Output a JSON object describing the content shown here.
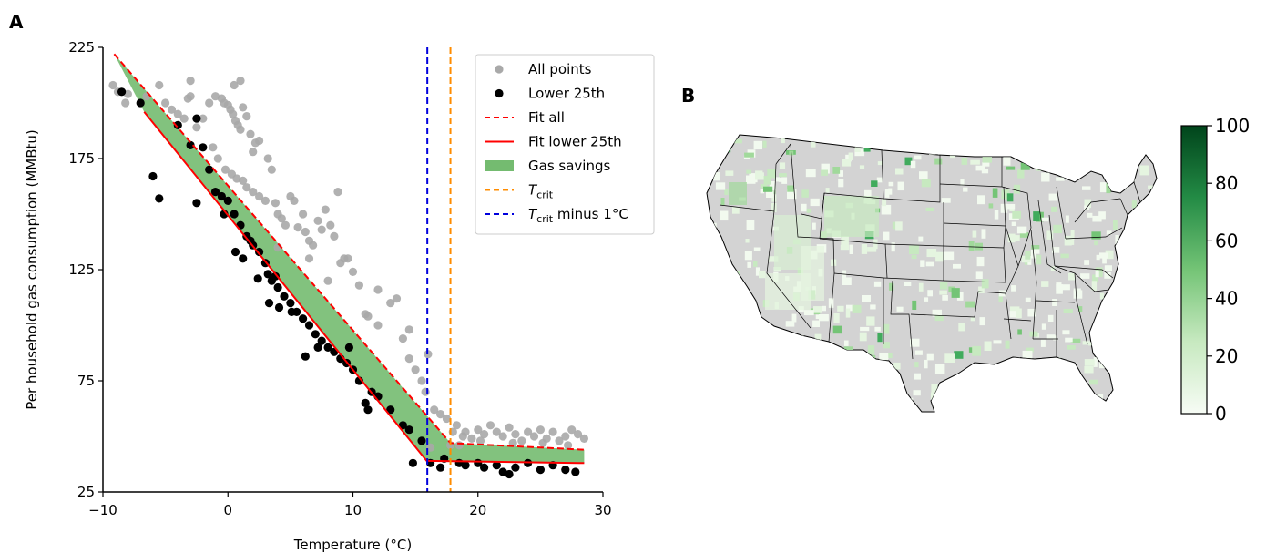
{
  "panel_a_label": "A",
  "panel_b_label": "B",
  "colors": {
    "all_points": "#a9a9a9",
    "lower_points": "#000000",
    "fit": "#ff0000",
    "savings": "#74bb70",
    "tcrit": "#ff8c00",
    "tcrit_minus": "#0000dd"
  },
  "chart_data": [
    {
      "type": "scatter",
      "title": "",
      "xlabel": "Temperature (°C)",
      "ylabel": "Per household gas consumption (MMBtu)",
      "xlim": [
        -10,
        30
      ],
      "ylim": [
        25,
        225
      ],
      "xticks": [
        -10,
        0,
        10,
        20,
        30
      ],
      "yticks": [
        25,
        75,
        125,
        175,
        225
      ],
      "grid": false,
      "legend_position": "top-right",
      "legend": [
        "All points",
        "Lower 25th",
        "Fit all",
        "Fit lower 25th",
        "Gas savings",
        "T",
        "T"
      ],
      "legend_subscripts": [
        "crit",
        "crit"
      ],
      "legend_suffix": " minus 1°C",
      "series": [
        {
          "name": "All points",
          "points": [
            [
              -9.2,
              208
            ],
            [
              -8.8,
              205
            ],
            [
              -8,
              204
            ],
            [
              -8.2,
              200
            ],
            [
              -6.5,
              203
            ],
            [
              -5.5,
              208
            ],
            [
              -5,
              200
            ],
            [
              -4.5,
              197
            ],
            [
              -4,
              195
            ],
            [
              -3.5,
              193
            ],
            [
              -3.2,
              202
            ],
            [
              -3,
              203
            ],
            [
              -2.5,
              189
            ],
            [
              -2,
              193
            ],
            [
              -1.5,
              200
            ],
            [
              -1,
              203
            ],
            [
              -0.5,
              202
            ],
            [
              -0.3,
              200
            ],
            [
              0,
              199
            ],
            [
              0.2,
              197
            ],
            [
              0.4,
              195
            ],
            [
              0.6,
              192
            ],
            [
              0.8,
              190
            ],
            [
              1,
              188
            ],
            [
              1.2,
              198
            ],
            [
              1.5,
              194
            ],
            [
              1.8,
              186
            ],
            [
              2,
              178
            ],
            [
              2.2,
              182
            ],
            [
              2.5,
              183
            ],
            [
              -1.2,
              180
            ],
            [
              -0.8,
              175
            ],
            [
              -0.2,
              170
            ],
            [
              0.3,
              168
            ],
            [
              0.7,
              166
            ],
            [
              1.2,
              165
            ],
            [
              1.5,
              162
            ],
            [
              2,
              160
            ],
            [
              2.5,
              158
            ],
            [
              3,
              156
            ],
            [
              3.2,
              175
            ],
            [
              3.5,
              170
            ],
            [
              3.8,
              155
            ],
            [
              4,
              150
            ],
            [
              4.3,
              148
            ],
            [
              4.6,
              145
            ],
            [
              5,
              158
            ],
            [
              5.3,
              156
            ],
            [
              5.6,
              144
            ],
            [
              6,
              150
            ],
            [
              6.2,
              142
            ],
            [
              6.5,
              138
            ],
            [
              6.8,
              136
            ],
            [
              7.2,
              147
            ],
            [
              7.5,
              143
            ],
            [
              7.8,
              152
            ],
            [
              8.2,
              145
            ],
            [
              8.5,
              140
            ],
            [
              8.8,
              160
            ],
            [
              9,
              128
            ],
            [
              9.3,
              130
            ],
            [
              9.6,
              130
            ],
            [
              10,
              124
            ],
            [
              10.5,
              118
            ],
            [
              11,
              105
            ],
            [
              11.2,
              104
            ],
            [
              12,
              100
            ],
            [
              13,
              110
            ],
            [
              13.5,
              112
            ],
            [
              14,
              94
            ],
            [
              14.5,
              85
            ],
            [
              15,
              80
            ],
            [
              15.5,
              75
            ],
            [
              15.8,
              70
            ],
            [
              16,
              87
            ],
            [
              16.5,
              62
            ],
            [
              17,
              60
            ],
            [
              17.5,
              58
            ],
            [
              18,
              52
            ],
            [
              18.3,
              55
            ],
            [
              18.8,
              50
            ],
            [
              19,
              52
            ],
            [
              19.5,
              49
            ],
            [
              20,
              53
            ],
            [
              20.5,
              51
            ],
            [
              21,
              55
            ],
            [
              21.5,
              52
            ],
            [
              22,
              50
            ],
            [
              22.5,
              54
            ],
            [
              23,
              51
            ],
            [
              23.5,
              48
            ],
            [
              24,
              52
            ],
            [
              24.5,
              50
            ],
            [
              25,
              53
            ],
            [
              25.5,
              49
            ],
            [
              26,
              52
            ],
            [
              26.5,
              48
            ],
            [
              27,
              50
            ],
            [
              27.5,
              53
            ],
            [
              28,
              51
            ],
            [
              28.5,
              49
            ],
            [
              18.5,
              46
            ],
            [
              20.2,
              48
            ],
            [
              22.8,
              47
            ],
            [
              25.2,
              47
            ],
            [
              27.2,
              46
            ],
            [
              1,
              210
            ],
            [
              -3,
              210
            ],
            [
              0.5,
              208
            ],
            [
              4,
              135
            ],
            [
              6.5,
              130
            ],
            [
              8,
              120
            ],
            [
              12,
              116
            ],
            [
              14.5,
              98
            ],
            [
              16.2,
              45
            ],
            [
              17.8,
              46
            ]
          ]
        },
        {
          "name": "Lower 25th",
          "points": [
            [
              -6,
              167
            ],
            [
              -8.5,
              205
            ],
            [
              -7,
              200
            ],
            [
              -4,
              190
            ],
            [
              -2.5,
              193
            ],
            [
              -3,
              181
            ],
            [
              -2,
              180
            ],
            [
              -1.5,
              170
            ],
            [
              -1,
              160
            ],
            [
              -0.5,
              158
            ],
            [
              0,
              156
            ],
            [
              0.5,
              150
            ],
            [
              1,
              145
            ],
            [
              1.5,
              140
            ],
            [
              2,
              136
            ],
            [
              2.5,
              133
            ],
            [
              3,
              128
            ],
            [
              3.2,
              123
            ],
            [
              3.5,
              120
            ],
            [
              4,
              117
            ],
            [
              4.5,
              113
            ],
            [
              5,
              110
            ],
            [
              5.5,
              106
            ],
            [
              6,
              103
            ],
            [
              6.5,
              100
            ],
            [
              7,
              96
            ],
            [
              7.5,
              93
            ],
            [
              8,
              90
            ],
            [
              8.5,
              88
            ],
            [
              9,
              85
            ],
            [
              9.5,
              83
            ],
            [
              10,
              80
            ],
            [
              10.5,
              75
            ],
            [
              11,
              65
            ],
            [
              11.5,
              70
            ],
            [
              12,
              68
            ],
            [
              13,
              62
            ],
            [
              14,
              55
            ],
            [
              14.5,
              53
            ],
            [
              14.8,
              38
            ],
            [
              15.5,
              48
            ],
            [
              16.2,
              38
            ],
            [
              17,
              36
            ],
            [
              17.3,
              40
            ],
            [
              18.5,
              38
            ],
            [
              19,
              37
            ],
            [
              20,
              38
            ],
            [
              20.5,
              36
            ],
            [
              21.5,
              37
            ],
            [
              22,
              34
            ],
            [
              22.5,
              33
            ],
            [
              23,
              36
            ],
            [
              24,
              38
            ],
            [
              25,
              35
            ],
            [
              26,
              37
            ],
            [
              27,
              35
            ],
            [
              27.8,
              34
            ],
            [
              0.6,
              133
            ],
            [
              1.2,
              130
            ],
            [
              2.4,
              121
            ],
            [
              3.3,
              110
            ],
            [
              4.1,
              108
            ],
            [
              5.1,
              106
            ],
            [
              6.2,
              86
            ],
            [
              7.2,
              90
            ],
            [
              -5.5,
              157
            ],
            [
              -2.5,
              155
            ],
            [
              -0.3,
              150
            ],
            [
              1.8,
              138
            ],
            [
              3.8,
              122
            ],
            [
              9.7,
              90
            ],
            [
              11.2,
              62
            ]
          ]
        }
      ],
      "fit_all": {
        "x": [
          -9.1,
          17.8,
          28.5
        ],
        "y": [
          222,
          47,
          44
        ]
      },
      "fit_lower": {
        "x": [
          -6.7,
          15.9,
          28.5
        ],
        "y": [
          196,
          39,
          38
        ]
      },
      "gas_savings_polygon": {
        "x": [
          -9.1,
          17.8,
          28.5,
          28.5,
          15.9,
          -6.7
        ],
        "y": [
          222,
          47,
          44,
          38,
          39,
          196
        ]
      },
      "tcrit": 17.8,
      "tcrit_minus_1": 15.95
    },
    {
      "type": "heatmap",
      "title": "",
      "description_hidden": false,
      "colorbar": {
        "ticks": [
          0,
          20,
          40,
          60,
          80,
          100
        ],
        "range": [
          0,
          100
        ]
      },
      "map_region": "contiguous United States, county level"
    }
  ]
}
